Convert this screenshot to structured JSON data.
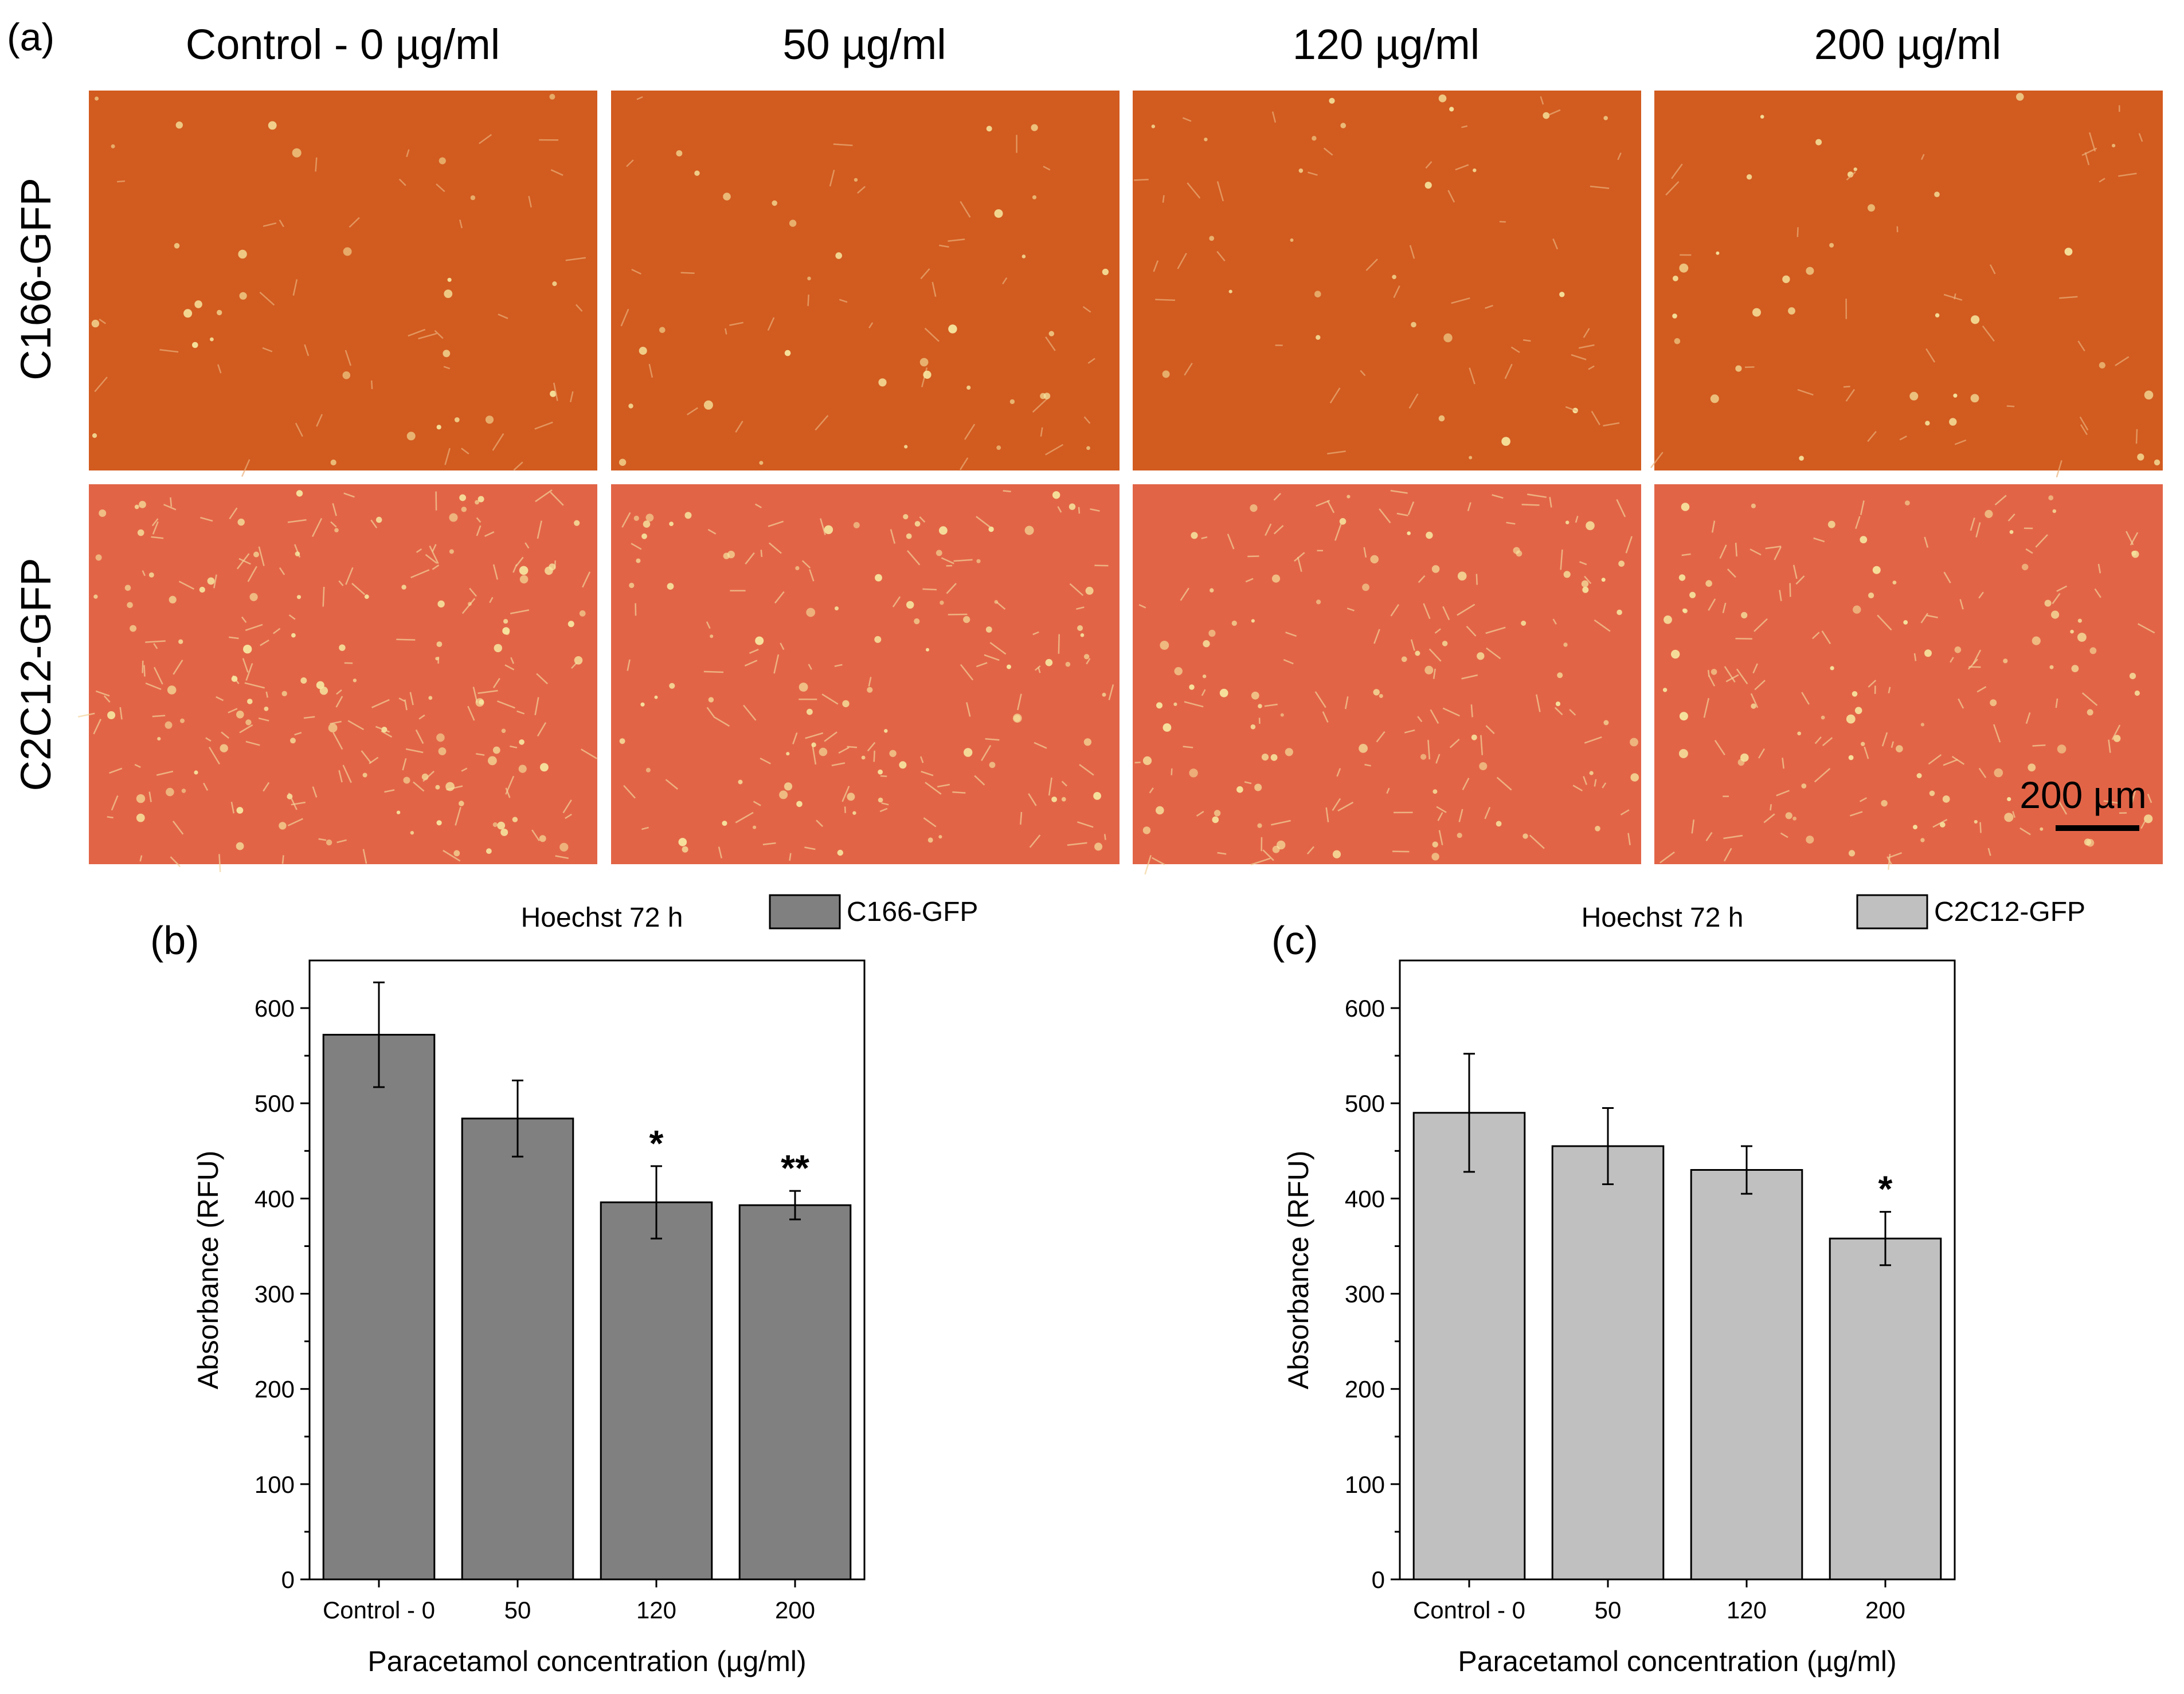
{
  "panel_a": {
    "label": "(a)",
    "columns": [
      "Control - 0 µg/ml",
      "50 µg/ml",
      "120 µg/ml",
      "200 µg/ml"
    ],
    "rows": [
      "C166-GFP",
      "C2C12-GFP"
    ],
    "row_colors": [
      "#d25b1f",
      "#e26447"
    ],
    "scale_bar_label": "200 µm"
  },
  "chart_data": [
    {
      "type": "bar",
      "panel_label": "(b)",
      "title": "Hoechst 72 h",
      "legend": [
        "C166-GFP"
      ],
      "legend_position": "top-right",
      "categories": [
        "Control - 0",
        "50",
        "120",
        "200"
      ],
      "series": [
        {
          "name": "C166-GFP",
          "values": [
            572,
            484,
            396,
            393
          ]
        }
      ],
      "errors": [
        55,
        40,
        38,
        15
      ],
      "significance": [
        "",
        "",
        "*",
        "**"
      ],
      "xlabel": "Paracetamol concentration (µg/ml)",
      "ylabel": "Absorbance (RFU)",
      "ylim": [
        0,
        650
      ],
      "yticks": [
        0,
        100,
        200,
        300,
        400,
        500,
        600
      ],
      "bar_color": "#808080"
    },
    {
      "type": "bar",
      "panel_label": "(c)",
      "title": "Hoechst 72 h",
      "legend": [
        "C2C12-GFP"
      ],
      "legend_position": "top-right",
      "categories": [
        "Control - 0",
        "50",
        "120",
        "200"
      ],
      "series": [
        {
          "name": "C2C12-GFP",
          "values": [
            490,
            455,
            430,
            358
          ]
        }
      ],
      "errors": [
        62,
        40,
        25,
        28
      ],
      "significance": [
        "",
        "",
        "",
        "*"
      ],
      "xlabel": "Paracetamol concentration (µg/ml)",
      "ylabel": "Absorbance (RFU)",
      "ylim": [
        0,
        650
      ],
      "yticks": [
        0,
        100,
        200,
        300,
        400,
        500,
        600
      ],
      "bar_color": "#c0c0c0"
    }
  ]
}
